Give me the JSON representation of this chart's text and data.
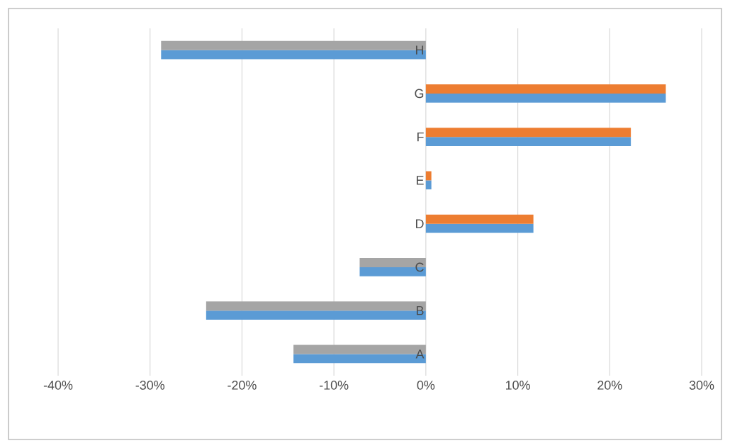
{
  "chart_data": {
    "type": "bar",
    "orientation": "horizontal",
    "categories": [
      "H",
      "G",
      "F",
      "E",
      "D",
      "C",
      "B",
      "A"
    ],
    "series": [
      {
        "color": "#5b9bd5",
        "values": [
          -28.8,
          26.1,
          22.3,
          0.6,
          11.7,
          -7.2,
          -23.9,
          -14.4
        ]
      },
      {
        "color": "#ed7d31",
        "values": [
          null,
          26.1,
          22.3,
          0.6,
          11.7,
          null,
          null,
          null
        ]
      },
      {
        "color": "#a5a5a5",
        "values": [
          -28.8,
          null,
          null,
          null,
          null,
          -7.2,
          -23.9,
          -14.4
        ]
      }
    ],
    "xlim": [
      -40,
      30
    ],
    "xticks": [
      {
        "value": -40,
        "label": "-40%"
      },
      {
        "value": -30,
        "label": "-30%"
      },
      {
        "value": -20,
        "label": "-20%"
      },
      {
        "value": -10,
        "label": "-10%"
      },
      {
        "value": 0,
        "label": "0%"
      },
      {
        "value": 10,
        "label": "10%"
      },
      {
        "value": 20,
        "label": "20%"
      },
      {
        "value": 30,
        "label": "30%"
      }
    ],
    "grid": "x"
  }
}
